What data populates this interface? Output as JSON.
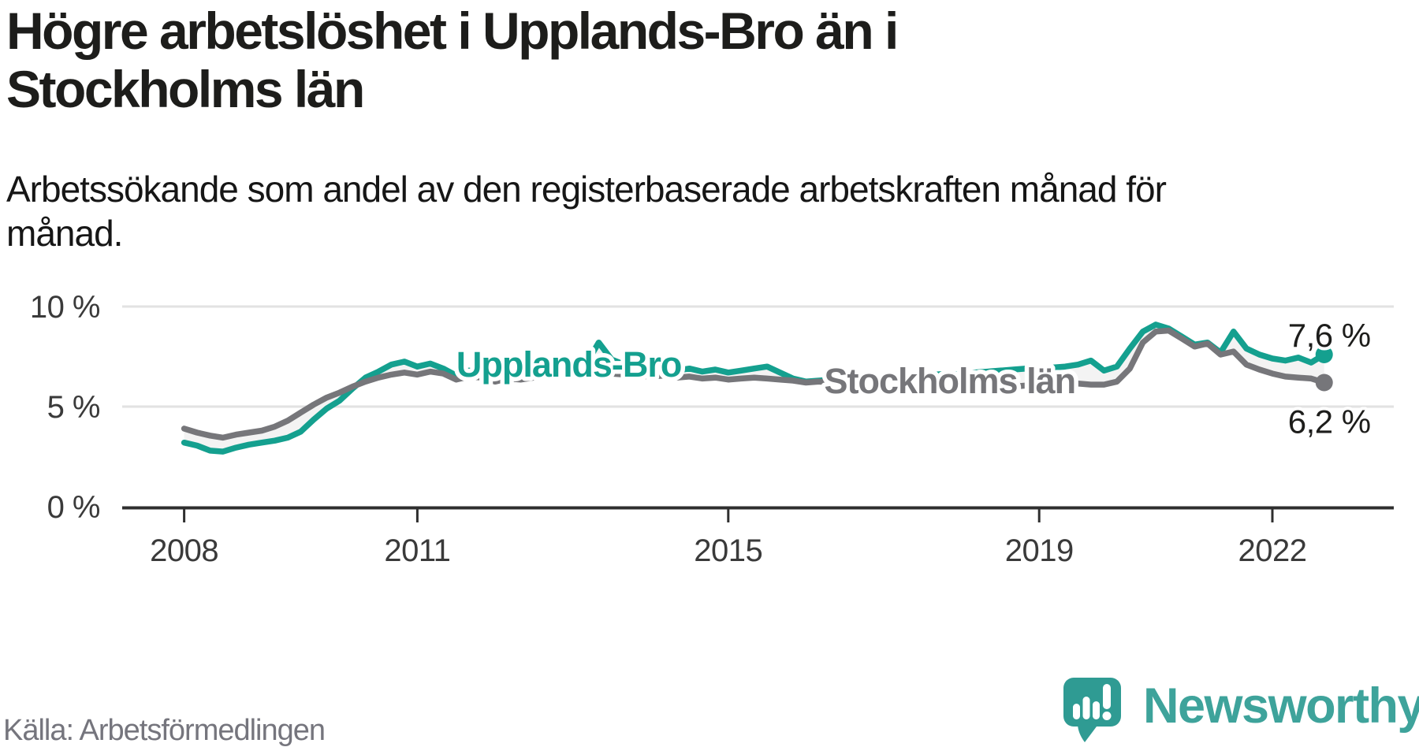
{
  "header": {
    "title_lines": [
      "Högre arbetslöshet i Upplands-Bro än i",
      "Stockholms län"
    ],
    "subtitle_lines": [
      "Arbetssökande som andel av den registerbaserade arbetskraften månad för",
      "månad."
    ]
  },
  "footer": {
    "source": "Källa: Arbetsförmedlingen",
    "brand": "Newsworthy"
  },
  "colors": {
    "series-teal": "#14A08F",
    "series-gray": "#76767A",
    "band": "#F3F3F3",
    "grid": "#E2E2E2",
    "axis": "#2F2F2F",
    "text-dark": "#1D1D1B",
    "text-gray": "#75757D",
    "brand-teal": "#2F9B93",
    "wordmark-teal": "#3EA39B"
  },
  "chart_data": {
    "type": "line",
    "unit": "%",
    "x_start": 2008.0,
    "x_step": 0.1666667,
    "xlim": [
      2008,
      2022.9
    ],
    "ylim": [
      0,
      10.5
    ],
    "grid": "horizontal-only",
    "legend_position": "inline-line-labels",
    "yticks": [
      {
        "value": 10,
        "label": "10 %",
        "gridline": true
      },
      {
        "value": 5,
        "label": "5 %",
        "gridline": true
      },
      {
        "value": 0,
        "label": "0 %",
        "gridline": false
      }
    ],
    "xticks": [
      {
        "value": 2008,
        "label": "2008"
      },
      {
        "value": 2011,
        "label": "2011"
      },
      {
        "value": 2015,
        "label": "2015"
      },
      {
        "value": 2019,
        "label": "2019"
      },
      {
        "value": 2022,
        "label": "2022"
      }
    ],
    "series": [
      {
        "name": "Upplands-Bro",
        "color": "#14A08F",
        "end_label": "7,6 %",
        "end_label_position": "above",
        "inline_label_anchor": {
          "t": 2012.95,
          "v": 6.5
        },
        "values": [
          3.2,
          3.05,
          2.8,
          2.75,
          2.95,
          3.1,
          3.2,
          3.3,
          3.45,
          3.75,
          4.35,
          4.9,
          5.3,
          5.9,
          6.45,
          6.75,
          7.1,
          7.25,
          7.0,
          7.15,
          6.9,
          6.55,
          6.8,
          6.6,
          6.35,
          6.5,
          6.45,
          6.6,
          6.8,
          6.9,
          7.0,
          7.1,
          8.2,
          7.35,
          7.1,
          6.9,
          6.85,
          6.95,
          6.8,
          6.9,
          6.75,
          6.85,
          6.7,
          6.8,
          6.9,
          7.0,
          6.7,
          6.4,
          6.25,
          6.3,
          6.35,
          6.4,
          6.45,
          6.4,
          6.45,
          6.5,
          6.5,
          6.55,
          6.6,
          6.65,
          6.6,
          6.7,
          6.75,
          6.8,
          6.85,
          6.9,
          6.9,
          6.95,
          7.0,
          7.1,
          7.3,
          6.8,
          7.0,
          7.9,
          8.75,
          9.1,
          8.9,
          8.5,
          8.1,
          8.2,
          7.7,
          8.75,
          7.9,
          7.6,
          7.4,
          7.3,
          7.45,
          7.2,
          7.6
        ]
      },
      {
        "name": "Stockholms län",
        "color": "#76767A",
        "end_label": "6,2 %",
        "end_label_position": "below",
        "inline_label_anchor": {
          "t": 2017.85,
          "v": 5.67
        },
        "values": [
          3.9,
          3.7,
          3.55,
          3.45,
          3.6,
          3.7,
          3.8,
          4.0,
          4.3,
          4.7,
          5.1,
          5.45,
          5.7,
          6.0,
          6.25,
          6.45,
          6.6,
          6.7,
          6.6,
          6.75,
          6.65,
          6.35,
          6.5,
          6.45,
          6.25,
          6.4,
          6.35,
          6.45,
          6.55,
          6.6,
          6.65,
          6.7,
          6.75,
          6.65,
          6.6,
          6.55,
          6.5,
          6.55,
          6.45,
          6.5,
          6.4,
          6.45,
          6.35,
          6.4,
          6.45,
          6.4,
          6.35,
          6.3,
          6.2,
          6.25,
          6.2,
          6.15,
          6.2,
          6.15,
          6.1,
          6.15,
          6.1,
          6.05,
          6.1,
          6.05,
          6.0,
          6.05,
          6.0,
          6.05,
          6.0,
          6.05,
          6.05,
          6.1,
          6.1,
          6.15,
          6.1,
          6.1,
          6.25,
          6.9,
          8.2,
          8.75,
          8.8,
          8.4,
          8.0,
          8.15,
          7.6,
          7.75,
          7.1,
          6.85,
          6.65,
          6.5,
          6.45,
          6.4,
          6.2
        ]
      }
    ]
  }
}
